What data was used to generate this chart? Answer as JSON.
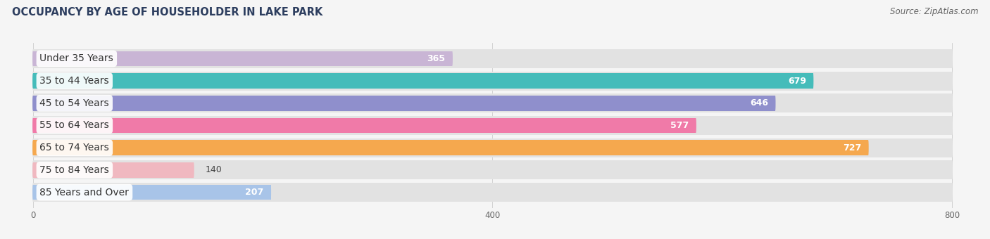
{
  "title": "OCCUPANCY BY AGE OF HOUSEHOLDER IN LAKE PARK",
  "source": "Source: ZipAtlas.com",
  "categories": [
    "Under 35 Years",
    "35 to 44 Years",
    "45 to 54 Years",
    "55 to 64 Years",
    "65 to 74 Years",
    "75 to 84 Years",
    "85 Years and Over"
  ],
  "values": [
    365,
    679,
    646,
    577,
    727,
    140,
    207
  ],
  "bar_colors": [
    "#c9b5d5",
    "#45bcba",
    "#8f8fcc",
    "#f07aa8",
    "#f5a84e",
    "#f0b8c0",
    "#a8c4e8"
  ],
  "bg_bar_color": "#e2e2e2",
  "xlim": [
    0,
    800
  ],
  "xticks": [
    0,
    400,
    800
  ],
  "fig_bg_color": "#f5f5f5",
  "title_fontsize": 10.5,
  "label_fontsize": 10,
  "value_fontsize": 9,
  "source_fontsize": 8.5,
  "title_color": "#2d3e5f",
  "source_color": "#666666",
  "label_color": "#333333",
  "value_color_inside": "#ffffff",
  "value_color_outside": "#444444",
  "inside_threshold": 200
}
